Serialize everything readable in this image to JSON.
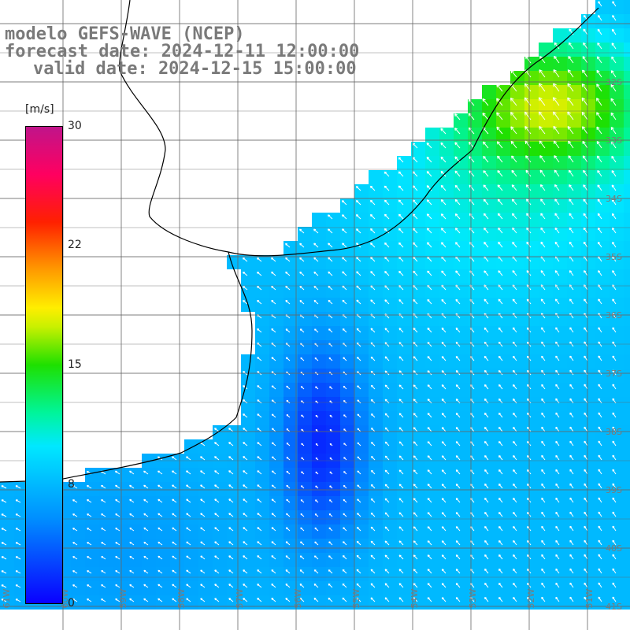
{
  "title": {
    "model": "modelo GEFS-WAVE (NCEP)",
    "forecast": "forecast date: 2024-12-11 12:00:00",
    "valid": "valid date: 2024-12-15 15:00:00"
  },
  "colorbar": {
    "unit": "[m/s]",
    "ticks": [
      "30",
      "22",
      "15",
      "8",
      "0"
    ],
    "colors": [
      "#0a00ff",
      "#0090ff",
      "#00e8ff",
      "#00f59a",
      "#1ee000",
      "#c8f000",
      "#ffee00",
      "#ff9a00",
      "#ff2000",
      "#ff0060",
      "#c0148a"
    ]
  },
  "lat_labels": [
    "32S",
    "33S",
    "34S",
    "35S",
    "36S",
    "37S",
    "38S",
    "39S",
    "40S",
    "41S"
  ],
  "lon_labels": [
    "61W",
    "60W",
    "59W",
    "58W",
    "57W",
    "56W",
    "55W",
    "54W",
    "53W",
    "52W",
    "51W"
  ],
  "colors": {
    "land": "#ffffff",
    "grid": "#666666",
    "coast": "#000000",
    "arrow": "#ffffff",
    "label": "#7a7a7a"
  }
}
